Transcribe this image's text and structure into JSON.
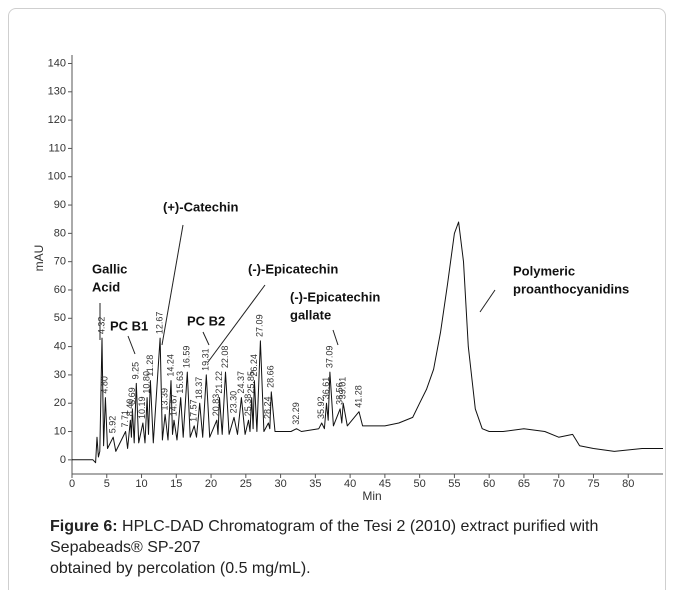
{
  "chart_data": {
    "type": "line",
    "y_label": "mAU",
    "x_label": "Min",
    "xlim": [
      0,
      85
    ],
    "ylim": [
      -5,
      143
    ],
    "xticks": [
      0,
      5,
      10,
      15,
      20,
      25,
      30,
      35,
      40,
      45,
      50,
      55,
      60,
      65,
      70,
      75,
      80
    ],
    "yticks": [
      0,
      10,
      20,
      30,
      40,
      50,
      60,
      70,
      80,
      90,
      100,
      110,
      120,
      130,
      140
    ],
    "series": [
      {
        "color": "#111111",
        "x": [
          0,
          3,
          3.4,
          3.6,
          3.8,
          4.0,
          4.32,
          4.55,
          4.8,
          5.1,
          5.92,
          6.3,
          7.71,
          8.0,
          8.4,
          8.55,
          8.69,
          8.95,
          9.25,
          9.6,
          10.19,
          10.5,
          10.8,
          11.0,
          11.28,
          11.7,
          12.67,
          13.0,
          13.39,
          13.8,
          14.24,
          14.45,
          14.67,
          15.1,
          15.63,
          16.0,
          16.59,
          17.0,
          17.57,
          17.9,
          18.37,
          18.8,
          19.31,
          19.8,
          20.83,
          21.0,
          21.22,
          21.6,
          22.08,
          22.6,
          23.3,
          23.8,
          24.37,
          24.9,
          25.38,
          25.6,
          25.85,
          26.05,
          26.24,
          26.6,
          27.09,
          27.6,
          28.24,
          28.45,
          28.66,
          29.2,
          31.5,
          32.29,
          33,
          35.5,
          35.92,
          36.3,
          36.61,
          36.85,
          37.09,
          37.6,
          38.56,
          38.8,
          39.01,
          39.6,
          41.28,
          41.8,
          43,
          45,
          47,
          49,
          50,
          51,
          52,
          53,
          54,
          55,
          55.6,
          56.3,
          57,
          58,
          59,
          60,
          62,
          65,
          68,
          70,
          72,
          72.5,
          73,
          75,
          78,
          82,
          85
        ],
        "values": [
          0,
          0,
          -1,
          8,
          1,
          3,
          43,
          5,
          22,
          4,
          8,
          3,
          10,
          4,
          14,
          8,
          18,
          6,
          27,
          6,
          13,
          6,
          22,
          9,
          28,
          6,
          43,
          7,
          16,
          7,
          28,
          9,
          14,
          7,
          22,
          8,
          31,
          8,
          12,
          8,
          20,
          8,
          30,
          8,
          14,
          9,
          22,
          9,
          31,
          9,
          15,
          9,
          22,
          9,
          14,
          10,
          22,
          11,
          28,
          10,
          42,
          10,
          13,
          11,
          24,
          10,
          10,
          11,
          10,
          11,
          13,
          11,
          20,
          14,
          31,
          12,
          18,
          13,
          20,
          12,
          17,
          12,
          12,
          12,
          13,
          15,
          20,
          25,
          32,
          45,
          62,
          80,
          84,
          70,
          40,
          18,
          11,
          10,
          10,
          11,
          10,
          8,
          9,
          7,
          5,
          4,
          3,
          4,
          4
        ]
      }
    ],
    "peak_labels": [
      {
        "value": 4.32,
        "label": "4.32"
      },
      {
        "value": 4.8,
        "label": "4.80"
      },
      {
        "value": 5.92,
        "label": "5.92"
      },
      {
        "value": 7.71,
        "label": "7.71"
      },
      {
        "value": 8.4,
        "label": "8.40"
      },
      {
        "value": 8.69,
        "label": "8.69"
      },
      {
        "value": 9.25,
        "label": "9.25"
      },
      {
        "value": 10.19,
        "label": "10.19"
      },
      {
        "value": 10.8,
        "label": "10.80"
      },
      {
        "value": 11.28,
        "label": "11.28"
      },
      {
        "value": 12.67,
        "label": "12.67"
      },
      {
        "value": 13.39,
        "label": "13.39"
      },
      {
        "value": 14.24,
        "label": "14.24"
      },
      {
        "value": 14.67,
        "label": "14.67"
      },
      {
        "value": 15.63,
        "label": "15.63"
      },
      {
        "value": 16.59,
        "label": "16.59"
      },
      {
        "value": 17.57,
        "label": "17.57"
      },
      {
        "value": 18.37,
        "label": "18.37"
      },
      {
        "value": 19.31,
        "label": "19.31"
      },
      {
        "value": 20.83,
        "label": "20.83"
      },
      {
        "value": 21.22,
        "label": "21.22"
      },
      {
        "value": 22.08,
        "label": "22.08"
      },
      {
        "value": 23.3,
        "label": "23.30"
      },
      {
        "value": 24.37,
        "label": "24.37"
      },
      {
        "value": 25.38,
        "label": "25.38"
      },
      {
        "value": 25.85,
        "label": "25.85"
      },
      {
        "value": 26.24,
        "label": "26.24"
      },
      {
        "value": 27.09,
        "label": "27.09"
      },
      {
        "value": 28.24,
        "label": "28.24"
      },
      {
        "value": 28.66,
        "label": "28.66"
      },
      {
        "value": 32.29,
        "label": "32.29"
      },
      {
        "value": 35.92,
        "label": "35.92"
      },
      {
        "value": 36.61,
        "label": "36.61"
      },
      {
        "value": 37.09,
        "label": "37.09"
      },
      {
        "value": 38.56,
        "label": "38.56"
      },
      {
        "value": 39.01,
        "label": "39.01"
      },
      {
        "value": 41.28,
        "label": "41.28"
      }
    ],
    "annotations": [
      {
        "lines": [
          "Gallic",
          "Acid"
        ]
      },
      {
        "lines": [
          "PC B1"
        ]
      },
      {
        "lines": [
          "(+)-Catechin"
        ]
      },
      {
        "lines": [
          "PC B2"
        ]
      },
      {
        "lines": [
          "(-)-Epicatechin"
        ]
      },
      {
        "lines": [
          "(-)-Epicatechin",
          "gallate"
        ]
      },
      {
        "lines": [
          "Polymeric",
          "proanthocyanidins"
        ]
      }
    ]
  },
  "caption": {
    "label": "Figure 6:",
    "text": "HPLC-DAD Chromatogram of the  Tesi 2 (2010) extract purified with Sepabeads® SP-207",
    "text2": "obtained by percolation (0.5 mg/mL)."
  }
}
